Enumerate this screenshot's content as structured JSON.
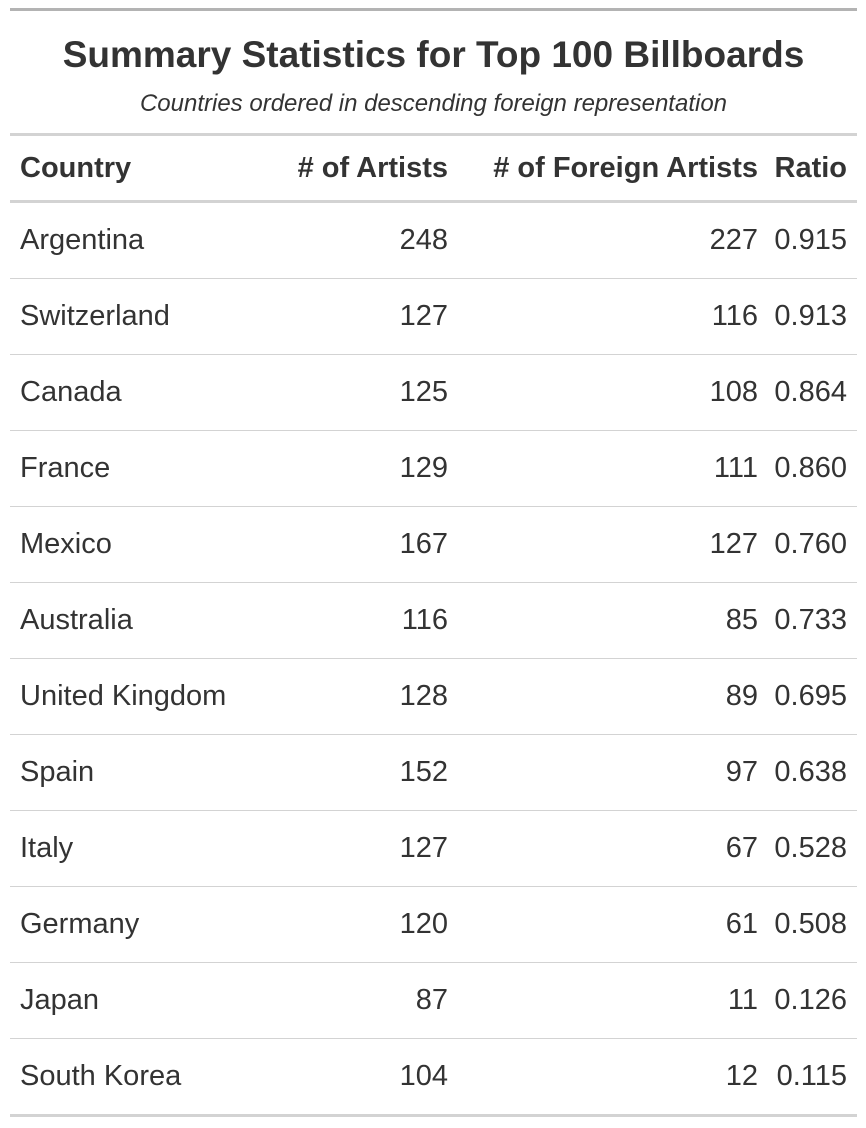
{
  "chart_data": {
    "type": "table",
    "title": "Summary Statistics for Top 100 Billboards",
    "subtitle": "Countries ordered in descending foreign representation",
    "columns": [
      "Country",
      "# of Artists",
      "# of Foreign Artists",
      "Ratio"
    ],
    "rows": [
      {
        "country": "Argentina",
        "artists": "248",
        "foreign": "227",
        "ratio": "0.915"
      },
      {
        "country": "Switzerland",
        "artists": "127",
        "foreign": "116",
        "ratio": "0.913"
      },
      {
        "country": "Canada",
        "artists": "125",
        "foreign": "108",
        "ratio": "0.864"
      },
      {
        "country": "France",
        "artists": "129",
        "foreign": "111",
        "ratio": "0.860"
      },
      {
        "country": "Mexico",
        "artists": "167",
        "foreign": "127",
        "ratio": "0.760"
      },
      {
        "country": "Australia",
        "artists": "116",
        "foreign": "85",
        "ratio": "0.733"
      },
      {
        "country": "United Kingdom",
        "artists": "128",
        "foreign": "89",
        "ratio": "0.695"
      },
      {
        "country": "Spain",
        "artists": "152",
        "foreign": "97",
        "ratio": "0.638"
      },
      {
        "country": "Italy",
        "artists": "127",
        "foreign": "67",
        "ratio": "0.528"
      },
      {
        "country": "Germany",
        "artists": "120",
        "foreign": "61",
        "ratio": "0.508"
      },
      {
        "country": "Japan",
        "artists": "87",
        "foreign": "11",
        "ratio": "0.126"
      },
      {
        "country": "South Korea",
        "artists": "104",
        "foreign": "12",
        "ratio": "0.115"
      }
    ]
  }
}
